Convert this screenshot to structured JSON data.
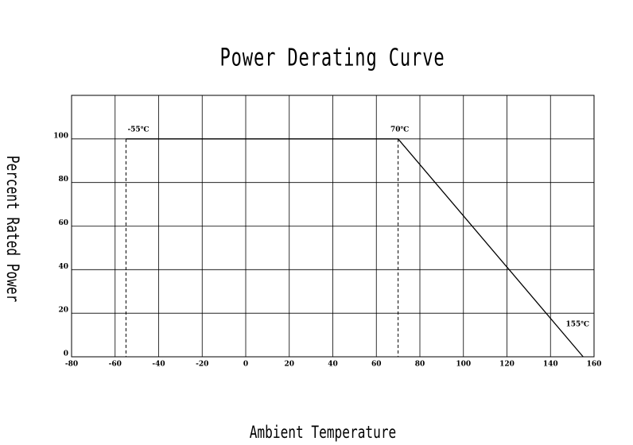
{
  "chart_data": {
    "type": "line",
    "title": "Power Derating Curve",
    "x_label": "Ambient Temperature",
    "y_label": "Percent Rated Power",
    "x": [
      -55,
      70,
      155
    ],
    "values": [
      100,
      100,
      0
    ],
    "color": "#000000",
    "xlim": [
      -80,
      160
    ],
    "xticks": [
      -80,
      -60,
      -40,
      -20,
      0,
      20,
      40,
      60,
      80,
      100,
      120,
      140,
      160
    ],
    "ylim": [
      0,
      120
    ],
    "yticks": [
      0,
      20,
      40,
      60,
      80,
      100
    ],
    "grid": true,
    "reference_lines": [
      {
        "x": -55,
        "y": 100
      },
      {
        "x": 70,
        "y": 100
      }
    ],
    "annotations": [
      {
        "text": "-55℃",
        "x": -55,
        "y": 100
      },
      {
        "text": "70℃",
        "x": 70,
        "y": 100
      },
      {
        "text": "155℃",
        "x": 155,
        "y": 0
      }
    ]
  }
}
